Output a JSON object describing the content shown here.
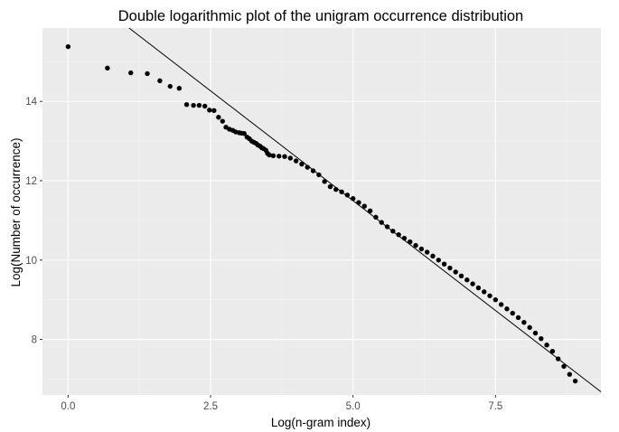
{
  "chart_data": {
    "type": "scatter",
    "title": "Double logarithmic plot of the unigram occurrence distribution",
    "xlabel": "Log(n-gram index)",
    "ylabel": "Log(Number of occurrence)",
    "xlim": [
      -0.45,
      9.35
    ],
    "ylim": [
      6.6,
      15.85
    ],
    "x_ticks": [
      0,
      2.5,
      5,
      7.5
    ],
    "x_tick_labels": [
      "0.0",
      "2.5",
      "5.0",
      "7.5"
    ],
    "y_ticks": [
      8,
      10,
      12,
      14
    ],
    "y_tick_labels": [
      "8",
      "10",
      "12",
      "14"
    ],
    "grid": true,
    "legend": "none",
    "colors": {
      "panel_background": "#ebebeb",
      "grid_major": "#ffffff",
      "grid_minor": "#f4f4f4",
      "points": "#000000",
      "fit_line": "#000000"
    },
    "series": [
      {
        "values": [
          [
            0.0,
            15.38
          ],
          [
            0.69,
            14.84
          ],
          [
            1.1,
            14.72
          ],
          [
            1.39,
            14.7
          ],
          [
            1.61,
            14.52
          ],
          [
            1.79,
            14.38
          ],
          [
            1.95,
            14.33
          ],
          [
            2.08,
            13.92
          ],
          [
            2.2,
            13.9
          ],
          [
            2.3,
            13.9
          ],
          [
            2.4,
            13.88
          ],
          [
            2.48,
            13.78
          ],
          [
            2.56,
            13.77
          ],
          [
            2.64,
            13.6
          ],
          [
            2.71,
            13.5
          ],
          [
            2.77,
            13.35
          ],
          [
            2.83,
            13.3
          ],
          [
            2.89,
            13.27
          ],
          [
            2.94,
            13.23
          ],
          [
            3.0,
            13.21
          ],
          [
            3.04,
            13.2
          ],
          [
            3.09,
            13.19
          ],
          [
            3.14,
            13.1
          ],
          [
            3.18,
            13.06
          ],
          [
            3.22,
            13.0
          ],
          [
            3.26,
            12.97
          ],
          [
            3.3,
            12.94
          ],
          [
            3.33,
            12.9
          ],
          [
            3.37,
            12.87
          ],
          [
            3.4,
            12.83
          ],
          [
            3.43,
            12.81
          ],
          [
            3.47,
            12.77
          ],
          [
            3.5,
            12.69
          ],
          [
            3.53,
            12.65
          ],
          [
            3.6,
            12.63
          ],
          [
            3.7,
            12.62
          ],
          [
            3.8,
            12.61
          ],
          [
            3.9,
            12.57
          ],
          [
            4.0,
            12.5
          ],
          [
            4.1,
            12.42
          ],
          [
            4.2,
            12.34
          ],
          [
            4.3,
            12.25
          ],
          [
            4.4,
            12.15
          ],
          [
            4.5,
            11.98
          ],
          [
            4.6,
            11.85
          ],
          [
            4.7,
            11.78
          ],
          [
            4.8,
            11.72
          ],
          [
            4.9,
            11.64
          ],
          [
            5.0,
            11.55
          ],
          [
            5.1,
            11.45
          ],
          [
            5.2,
            11.36
          ],
          [
            5.3,
            11.24
          ],
          [
            5.4,
            11.08
          ],
          [
            5.5,
            10.95
          ],
          [
            5.6,
            10.84
          ],
          [
            5.7,
            10.73
          ],
          [
            5.8,
            10.64
          ],
          [
            5.9,
            10.55
          ],
          [
            6.0,
            10.46
          ],
          [
            6.1,
            10.37
          ],
          [
            6.2,
            10.28
          ],
          [
            6.3,
            10.2
          ],
          [
            6.4,
            10.1
          ],
          [
            6.5,
            10.0
          ],
          [
            6.6,
            9.9
          ],
          [
            6.7,
            9.8
          ],
          [
            6.8,
            9.7
          ],
          [
            6.9,
            9.6
          ],
          [
            7.0,
            9.5
          ],
          [
            7.1,
            9.4
          ],
          [
            7.2,
            9.3
          ],
          [
            7.3,
            9.2
          ],
          [
            7.4,
            9.1
          ],
          [
            7.5,
            9.0
          ],
          [
            7.6,
            8.88
          ],
          [
            7.7,
            8.77
          ],
          [
            7.8,
            8.66
          ],
          [
            7.9,
            8.55
          ],
          [
            8.0,
            8.43
          ],
          [
            8.1,
            8.3
          ],
          [
            8.2,
            8.16
          ],
          [
            8.3,
            8.02
          ],
          [
            8.4,
            7.86
          ],
          [
            8.5,
            7.7
          ],
          [
            8.6,
            7.51
          ],
          [
            8.7,
            7.32
          ],
          [
            8.8,
            7.12
          ],
          [
            8.9,
            6.95
          ]
        ]
      }
    ],
    "fit_line": {
      "x": [
        1.07,
        9.35
      ],
      "y": [
        15.85,
        6.68
      ]
    }
  }
}
